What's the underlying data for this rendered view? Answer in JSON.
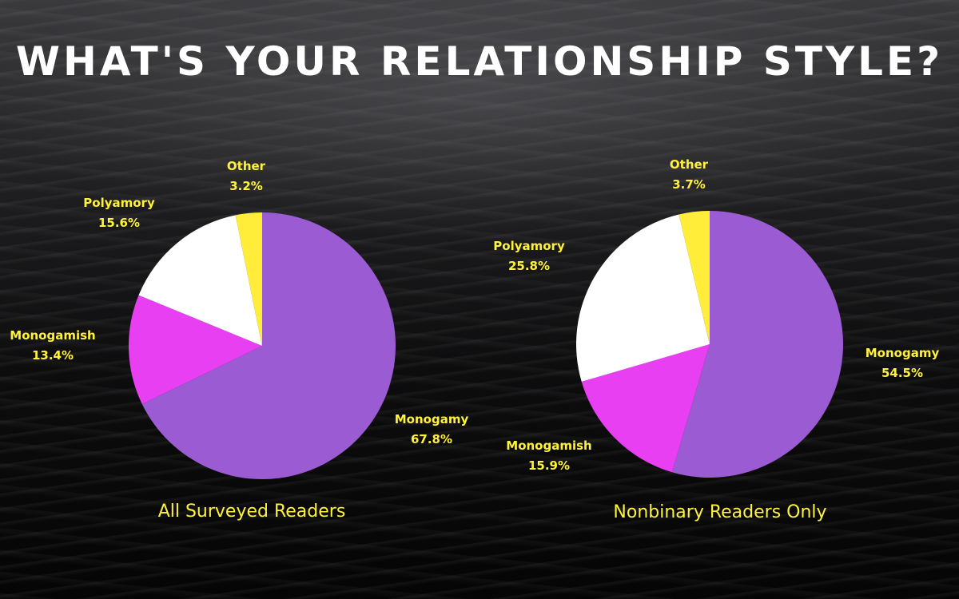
{
  "title": "WHAT'S YOUR RELATIONSHIP STYLE?",
  "colors": {
    "Monogamy": "#9b5bd3",
    "Monogamish": "#e83ff2",
    "Polyamory": "#ffffff",
    "Other": "#ffed3a",
    "label_text": "#fff23a"
  },
  "chart_data": [
    {
      "type": "pie",
      "title": "All Surveyed Readers",
      "slices": [
        {
          "label": "Monogamy",
          "value": 67.8,
          "display": "67.8%"
        },
        {
          "label": "Monogamish",
          "value": 13.4,
          "display": "13.4%"
        },
        {
          "label": "Polyamory",
          "value": 15.6,
          "display": "15.6%"
        },
        {
          "label": "Other",
          "value": 3.2,
          "display": "3.2%"
        }
      ]
    },
    {
      "type": "pie",
      "title": "Nonbinary Readers Only",
      "slices": [
        {
          "label": "Monogamy",
          "value": 54.5,
          "display": "54.5%"
        },
        {
          "label": "Monogamish",
          "value": 15.9,
          "display": "15.9%"
        },
        {
          "label": "Polyamory",
          "value": 25.8,
          "display": "25.8%"
        },
        {
          "label": "Other",
          "value": 3.7,
          "display": "3.7%"
        }
      ]
    }
  ]
}
